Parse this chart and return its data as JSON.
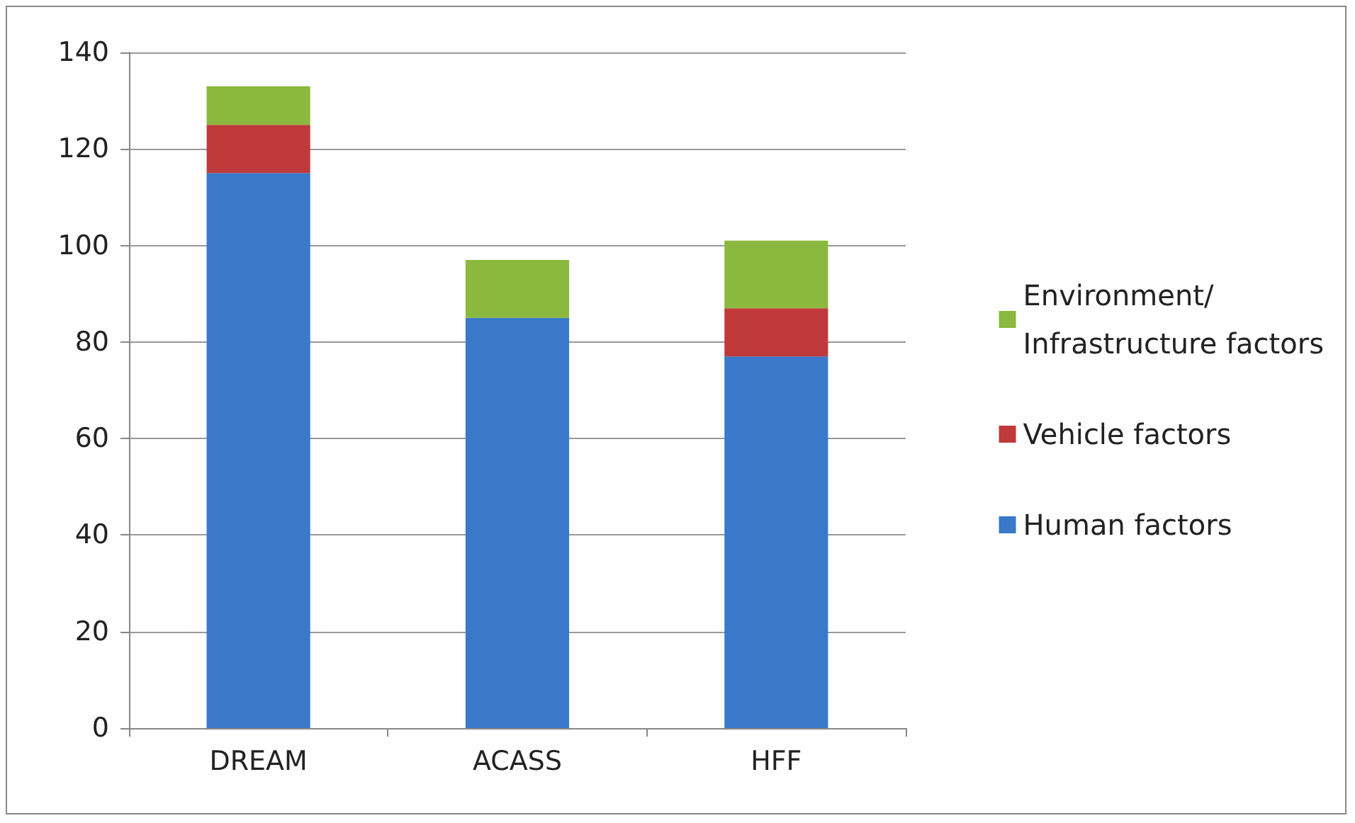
{
  "chart_data": {
    "type": "bar",
    "stacked": true,
    "categories": [
      "DREAM",
      "ACASS",
      "HFF"
    ],
    "series": [
      {
        "name": "Human factors",
        "color": "#3a78c9",
        "values": [
          115,
          85,
          77
        ]
      },
      {
        "name": "Vehicle factors",
        "color": "#c0393b",
        "values": [
          10,
          0,
          10
        ]
      },
      {
        "name": "Environment/\nInfrastructure factors",
        "color": "#8bb83e",
        "values": [
          8,
          12,
          14
        ]
      }
    ],
    "ylim": [
      0,
      140
    ],
    "yticks": [
      0,
      20,
      40,
      60,
      80,
      100,
      120,
      140
    ],
    "grid": "y",
    "legend": "right"
  }
}
